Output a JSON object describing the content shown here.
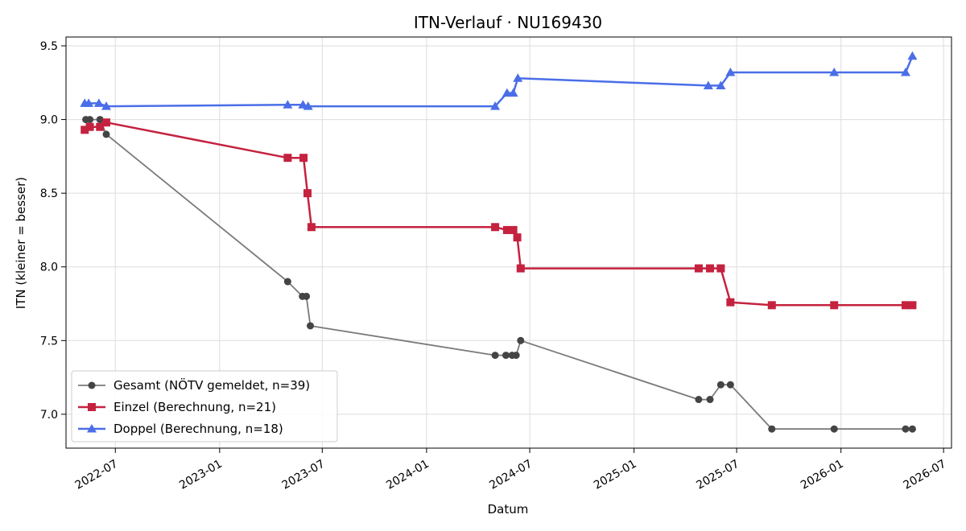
{
  "chart_data": {
    "type": "line",
    "title": "ITN-Verlauf · NU169430",
    "xlabel": "Datum",
    "ylabel": "ITN  (kleiner = besser)",
    "xlim": [
      "2022-04-05",
      "2026-07-15"
    ],
    "ylim": [
      6.77,
      9.56
    ],
    "x_ticks": [
      "2022-07",
      "2023-01",
      "2023-07",
      "2024-01",
      "2024-07",
      "2025-01",
      "2025-07",
      "2026-01",
      "2026-07"
    ],
    "y_ticks": [
      7.0,
      7.5,
      8.0,
      8.5,
      9.0,
      9.5
    ],
    "y_tick_labels": [
      "7.0",
      "7.5",
      "8.0",
      "8.5",
      "9.0",
      "9.5"
    ],
    "grid": true,
    "legend_position": "lower-left",
    "series": [
      {
        "name": "Gesamt (NÖTV gemeldet, n=39)",
        "color": "#7a7a7a",
        "marker_color": "#444444",
        "marker": "circle",
        "points": [
          [
            "2022-05-10",
            9.0
          ],
          [
            "2022-05-17",
            9.0
          ],
          [
            "2022-06-04",
            9.0
          ],
          [
            "2022-06-15",
            8.9
          ],
          [
            "2023-05-01",
            7.9
          ],
          [
            "2023-05-27",
            7.8
          ],
          [
            "2023-06-03",
            7.8
          ],
          [
            "2023-06-10",
            7.6
          ],
          [
            "2024-05-01",
            7.4
          ],
          [
            "2024-05-20",
            7.4
          ],
          [
            "2024-05-31",
            7.4
          ],
          [
            "2024-06-07",
            7.4
          ],
          [
            "2024-06-15",
            7.5
          ],
          [
            "2025-04-25",
            7.1
          ],
          [
            "2025-05-15",
            7.1
          ],
          [
            "2025-06-03",
            7.2
          ],
          [
            "2025-06-20",
            7.2
          ],
          [
            "2025-09-01",
            6.9
          ],
          [
            "2025-12-20",
            6.9
          ],
          [
            "2026-04-25",
            6.9
          ],
          [
            "2026-05-07",
            6.9
          ]
        ]
      },
      {
        "name": "Einzel (Berechnung, n=21)",
        "color": "#c4223f",
        "marker_color": "#c4223f",
        "marker": "square",
        "points": [
          [
            "2022-05-08",
            8.93
          ],
          [
            "2022-05-17",
            8.95
          ],
          [
            "2022-06-04",
            8.95
          ],
          [
            "2022-06-15",
            8.98
          ],
          [
            "2023-05-01",
            8.74
          ],
          [
            "2023-05-29",
            8.74
          ],
          [
            "2023-06-05",
            8.5
          ],
          [
            "2023-06-12",
            8.27
          ],
          [
            "2024-05-01",
            8.27
          ],
          [
            "2024-05-22",
            8.25
          ],
          [
            "2024-06-02",
            8.25
          ],
          [
            "2024-06-09",
            8.2
          ],
          [
            "2024-06-15",
            7.99
          ],
          [
            "2025-04-25",
            7.99
          ],
          [
            "2025-05-15",
            7.99
          ],
          [
            "2025-06-03",
            7.99
          ],
          [
            "2025-06-20",
            7.76
          ],
          [
            "2025-09-01",
            7.74
          ],
          [
            "2025-12-20",
            7.74
          ],
          [
            "2026-04-25",
            7.74
          ],
          [
            "2026-05-07",
            7.74
          ]
        ]
      },
      {
        "name": "Doppel (Berechnung, n=18)",
        "color": "#4a6ee8",
        "marker_color": "#4a6ee8",
        "marker": "triangle",
        "points": [
          [
            "2022-05-08",
            9.11
          ],
          [
            "2022-05-15",
            9.11
          ],
          [
            "2022-06-02",
            9.11
          ],
          [
            "2022-06-15",
            9.09
          ],
          [
            "2023-05-01",
            9.1
          ],
          [
            "2023-05-28",
            9.1
          ],
          [
            "2023-06-06",
            9.09
          ],
          [
            "2024-05-01",
            9.09
          ],
          [
            "2024-05-22",
            9.18
          ],
          [
            "2024-06-02",
            9.18
          ],
          [
            "2024-06-10",
            9.28
          ],
          [
            "2025-05-12",
            9.23
          ],
          [
            "2025-06-03",
            9.23
          ],
          [
            "2025-06-20",
            9.32
          ],
          [
            "2025-12-20",
            9.32
          ],
          [
            "2026-04-25",
            9.32
          ],
          [
            "2026-05-07",
            9.43
          ]
        ]
      }
    ]
  }
}
